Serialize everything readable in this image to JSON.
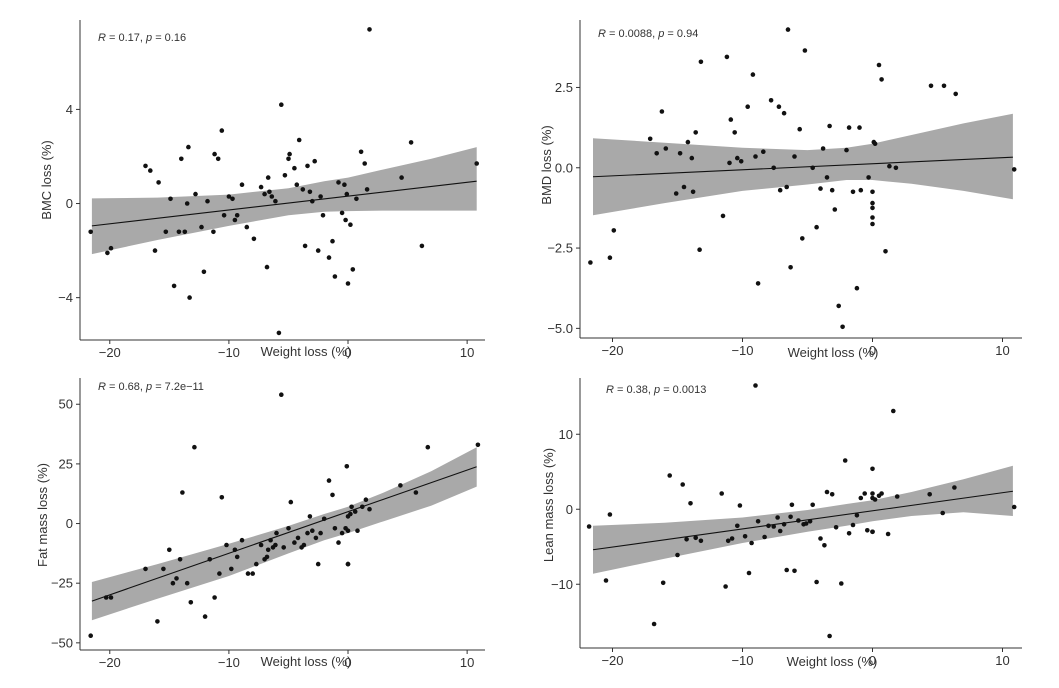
{
  "chart_data": [
    {
      "type": "scatter",
      "title": "",
      "xlabel": "Weight loss (%)",
      "ylabel": "BMC loss (%)",
      "annotation": {
        "r_label": "R",
        "r_value": " = 0.17, ",
        "p_label": "p",
        "p_value": " = 0.16"
      },
      "xlim": [
        -22.5,
        11.5
      ],
      "ylim": [
        -5.8,
        7.8
      ],
      "x_ticks": [
        -20,
        -10,
        0,
        10
      ],
      "x_tick_labels": [
        "−20",
        "−10",
        "0",
        "10"
      ],
      "y_ticks": [
        -4,
        0,
        4
      ],
      "y_tick_labels": [
        "−4",
        "0",
        "4"
      ],
      "grid": false,
      "fit": {
        "x": [
          -21.5,
          10.8
        ],
        "y": [
          -0.95,
          0.95
        ]
      },
      "ci": {
        "x": [
          -21.5,
          -16,
          -10,
          -5,
          -2,
          0,
          3,
          7,
          10.8
        ],
        "upper": [
          0.22,
          0.25,
          0.38,
          0.65,
          0.95,
          1.1,
          1.45,
          1.9,
          2.4
        ],
        "lower": [
          -2.15,
          -1.55,
          -0.95,
          -0.5,
          -0.35,
          -0.32,
          -0.3,
          -0.3,
          -0.3
        ]
      },
      "x": [
        -21.6,
        -20.2,
        -19.9,
        -17.0,
        -16.6,
        -16.2,
        -15.9,
        -15.3,
        -14.9,
        -14.6,
        -14.2,
        -14.0,
        -13.7,
        -13.5,
        -13.4,
        -13.3,
        -12.8,
        -12.3,
        -12.1,
        -11.8,
        -11.3,
        -11.2,
        -10.9,
        -10.6,
        -10.4,
        -10.0,
        -9.7,
        -9.5,
        -9.3,
        -8.9,
        -8.5,
        -7.9,
        -7.3,
        -7.0,
        -6.8,
        -6.7,
        -6.6,
        -6.4,
        -6.1,
        -5.8,
        -5.6,
        -5.3,
        -5.0,
        -4.9,
        -4.5,
        -4.3,
        -4.1,
        -3.8,
        -3.6,
        -3.4,
        -3.2,
        -3.0,
        -2.8,
        -2.5,
        -2.3,
        -2.1,
        -1.6,
        -1.3,
        -1.1,
        -0.8,
        -0.5,
        -0.3,
        -0.2,
        -0.1,
        0.0,
        0.2,
        0.4,
        0.7,
        1.1,
        1.4,
        1.6,
        1.8,
        4.5,
        5.3,
        6.2,
        10.8
      ],
      "y": [
        -1.2,
        -2.1,
        -1.9,
        1.6,
        1.4,
        -2.0,
        0.9,
        -1.2,
        0.2,
        -3.5,
        -1.2,
        1.9,
        -1.2,
        0.0,
        2.4,
        -4.0,
        0.4,
        -1.0,
        -2.9,
        0.1,
        -1.2,
        2.1,
        1.9,
        3.1,
        -0.5,
        0.3,
        0.2,
        -0.7,
        -0.5,
        0.8,
        -1.0,
        -1.5,
        0.7,
        0.4,
        -2.7,
        1.1,
        0.5,
        0.3,
        0.1,
        -5.5,
        4.2,
        1.2,
        1.9,
        2.1,
        1.5,
        0.8,
        2.7,
        0.6,
        -1.8,
        1.6,
        0.5,
        0.1,
        1.8,
        -2.0,
        0.3,
        -0.5,
        -2.3,
        -1.6,
        -3.1,
        0.9,
        -0.4,
        0.8,
        -0.7,
        0.4,
        -3.4,
        -0.9,
        -2.8,
        0.2,
        2.2,
        1.7,
        0.6,
        7.4,
        1.1,
        2.6,
        -1.8,
        1.7
      ]
    },
    {
      "type": "scatter",
      "title": "",
      "xlabel": "Weight loss (%)",
      "ylabel": "BMD loss (%)",
      "annotation": {
        "r_label": "R",
        "r_value": " = 0.0088, ",
        "p_label": "p",
        "p_value": " = 0.94"
      },
      "xlim": [
        -22.5,
        11.5
      ],
      "ylim": [
        -5.3,
        4.6
      ],
      "x_ticks": [
        -20,
        -10,
        0,
        10
      ],
      "x_tick_labels": [
        "−20",
        "−10",
        "0",
        "10"
      ],
      "y_ticks": [
        -5.0,
        -2.5,
        0.0,
        2.5
      ],
      "y_tick_labels": [
        "−5.0",
        "−2.5",
        "0.0",
        "2.5"
      ],
      "grid": false,
      "fit": {
        "x": [
          -21.5,
          10.8
        ],
        "y": [
          -0.28,
          0.33
        ]
      },
      "ci": {
        "x": [
          -21.5,
          -16,
          -10,
          -5,
          -2,
          0,
          3,
          7,
          10.8
        ],
        "upper": [
          0.92,
          0.78,
          0.62,
          0.55,
          0.62,
          0.75,
          1.02,
          1.38,
          1.68
        ],
        "lower": [
          -1.48,
          -1.1,
          -0.72,
          -0.52,
          -0.38,
          -0.38,
          -0.5,
          -0.72,
          -0.98
        ]
      },
      "x": [
        -21.7,
        -20.2,
        -19.9,
        -17.1,
        -16.6,
        -16.2,
        -15.9,
        -15.1,
        -14.8,
        -14.5,
        -14.2,
        -13.9,
        -13.8,
        -13.6,
        -13.3,
        -13.2,
        -11.5,
        -11.2,
        -11.0,
        -10.9,
        -10.6,
        -10.4,
        -10.1,
        -9.6,
        -9.2,
        -9.0,
        -8.8,
        -8.4,
        -7.8,
        -7.6,
        -7.2,
        -7.1,
        -6.8,
        -6.6,
        -6.5,
        -6.3,
        -6.0,
        -5.6,
        -5.4,
        -5.2,
        -4.6,
        -4.3,
        -4.0,
        -3.8,
        -3.5,
        -3.3,
        -3.1,
        -2.9,
        -2.6,
        -2.3,
        -2.0,
        -1.8,
        -1.5,
        -1.2,
        -1.0,
        -0.9,
        -0.3,
        0.0,
        0.0,
        0.0,
        0.0,
        0.0,
        0.1,
        0.2,
        0.5,
        0.7,
        1.0,
        1.3,
        1.8,
        4.5,
        5.5,
        6.4,
        10.9
      ],
      "y": [
        -2.95,
        -2.8,
        -1.95,
        0.9,
        0.45,
        1.75,
        0.6,
        -0.8,
        0.45,
        -0.6,
        0.8,
        0.3,
        -0.75,
        1.1,
        -2.55,
        3.3,
        -1.5,
        3.45,
        0.15,
        1.5,
        1.1,
        0.3,
        0.2,
        1.9,
        2.9,
        0.35,
        -3.6,
        0.5,
        2.1,
        0.0,
        1.9,
        -0.7,
        1.7,
        -0.6,
        4.3,
        -3.1,
        0.35,
        1.2,
        -2.2,
        3.65,
        0.0,
        -1.85,
        -0.65,
        0.6,
        -0.3,
        1.3,
        -0.7,
        -1.3,
        -4.3,
        -4.95,
        0.55,
        1.25,
        -0.75,
        -3.75,
        1.25,
        -0.7,
        -0.3,
        -0.75,
        -1.25,
        -1.75,
        -1.55,
        -1.1,
        0.8,
        0.75,
        3.2,
        2.75,
        -2.6,
        0.05,
        0.0,
        2.55,
        2.55,
        2.3,
        -0.05
      ]
    },
    {
      "type": "scatter",
      "title": "",
      "xlabel": "Weight loss (%)",
      "ylabel": "Fat mass loss (%)",
      "annotation": {
        "r_label": "R",
        "r_value": " = 0.68, ",
        "p_label": "p",
        "p_value": " = 7.2e−11"
      },
      "xlim": [
        -22.5,
        11.5
      ],
      "ylim": [
        -53,
        61
      ],
      "x_ticks": [
        -20,
        -10,
        0,
        10
      ],
      "x_tick_labels": [
        "−20",
        "−10",
        "0",
        "10"
      ],
      "y_ticks": [
        -50,
        -25,
        0,
        25,
        50
      ],
      "y_tick_labels": [
        "−50",
        "−25",
        "0",
        "25",
        "50"
      ],
      "grid": false,
      "fit": {
        "x": [
          -21.5,
          10.8
        ],
        "y": [
          -32.5,
          23.8
        ]
      },
      "ci": {
        "x": [
          -21.5,
          -16,
          -10,
          -5,
          -2,
          0,
          3,
          7,
          10.8
        ],
        "upper": [
          -24.5,
          -17,
          -8.5,
          -1,
          4,
          7,
          13,
          22,
          32
        ],
        "lower": [
          -40.5,
          -31.5,
          -22,
          -12.5,
          -7,
          -4,
          1,
          7.5,
          15.5
        ]
      },
      "x": [
        -21.6,
        -20.3,
        -19.9,
        -17.0,
        -16.0,
        -15.5,
        -15.0,
        -14.7,
        -14.4,
        -14.1,
        -13.9,
        -13.5,
        -13.2,
        -12.9,
        -12.0,
        -11.6,
        -11.2,
        -10.8,
        -10.6,
        -10.2,
        -9.8,
        -9.5,
        -9.3,
        -8.9,
        -8.4,
        -8.0,
        -7.7,
        -7.3,
        -7.0,
        -6.8,
        -6.7,
        -6.5,
        -6.3,
        -6.1,
        -6.0,
        -5.6,
        -5.4,
        -5.0,
        -4.8,
        -4.5,
        -4.2,
        -3.9,
        -3.7,
        -3.4,
        -3.2,
        -3.0,
        -2.7,
        -2.5,
        -2.3,
        -2.0,
        -1.6,
        -1.3,
        -1.1,
        -0.8,
        -0.5,
        -0.2,
        -0.1,
        0.0,
        0.0,
        0.0,
        0.0,
        0.2,
        0.3,
        0.6,
        0.8,
        1.2,
        1.5,
        1.8,
        4.4,
        5.7,
        6.7,
        10.9
      ],
      "y": [
        -47,
        -31,
        -31,
        -19,
        -41,
        -19,
        -11,
        -25,
        -23,
        -15,
        13,
        -25,
        -33,
        32,
        -39,
        -15,
        -31,
        -21,
        11,
        -9,
        -19,
        -11,
        -14,
        -7,
        -21,
        -21,
        -17,
        -9,
        -15,
        -14,
        -11,
        -7,
        -10,
        -9,
        -4,
        54,
        -10,
        -2,
        9,
        -8,
        -6,
        -10,
        -9,
        -4,
        3,
        -3,
        -6,
        -17,
        -4,
        2,
        18,
        12,
        -2,
        -8,
        -4,
        -2,
        24,
        -17,
        -17,
        -3,
        3,
        4,
        7,
        5,
        -3,
        7,
        10,
        6,
        16,
        13,
        32,
        33
      ]
    },
    {
      "type": "scatter",
      "title": "",
      "xlabel": "Weight loss (%)",
      "ylabel": "Lean mass loss (%)",
      "annotation": {
        "r_label": "R",
        "r_value": " = 0.38, ",
        "p_label": "p",
        "p_value": " = 0.0013"
      },
      "xlim": [
        -22.5,
        11.5
      ],
      "ylim": [
        -18.5,
        17.5
      ],
      "x_ticks": [
        -20,
        -10,
        0,
        10
      ],
      "x_tick_labels": [
        "−20",
        "−10",
        "0",
        "10"
      ],
      "y_ticks": [
        -10,
        0,
        10
      ],
      "y_tick_labels": [
        "−10",
        "0",
        "10"
      ],
      "grid": false,
      "fit": {
        "x": [
          -21.5,
          10.8
        ],
        "y": [
          -5.4,
          2.4
        ]
      },
      "ci": {
        "x": [
          -21.5,
          -16,
          -10,
          -5,
          -2,
          0,
          3,
          7,
          10.8
        ],
        "upper": [
          -2.2,
          -1.8,
          -1.1,
          -0.1,
          0.7,
          1.2,
          2.3,
          4.0,
          5.8
        ],
        "lower": [
          -8.6,
          -6.6,
          -4.5,
          -3.0,
          -2.2,
          -1.6,
          -0.9,
          -0.4,
          -0.9
        ]
      },
      "x": [
        -21.8,
        -20.5,
        -20.2,
        -16.8,
        -16.1,
        -15.6,
        -15.0,
        -14.6,
        -14.3,
        -14.0,
        -13.6,
        -13.2,
        -11.6,
        -11.3,
        -11.1,
        -10.8,
        -10.4,
        -10.2,
        -9.8,
        -9.5,
        -9.3,
        -9.0,
        -8.8,
        -8.3,
        -8.0,
        -7.6,
        -7.3,
        -7.1,
        -6.8,
        -6.6,
        -6.3,
        -6.2,
        -6.0,
        -5.7,
        -5.3,
        -5.1,
        -4.8,
        -4.6,
        -4.3,
        -4.0,
        -3.7,
        -3.5,
        -3.3,
        -3.1,
        -2.8,
        -2.4,
        -2.1,
        -1.8,
        -1.5,
        -1.2,
        -0.9,
        -0.6,
        -0.4,
        0.0,
        0.0,
        0.0,
        0.0,
        0.0,
        0.2,
        0.5,
        0.7,
        1.2,
        1.6,
        1.9,
        4.4,
        5.4,
        6.3,
        10.9
      ],
      "y": [
        -2.3,
        -9.5,
        -0.7,
        -15.3,
        -9.8,
        4.5,
        -6.1,
        3.3,
        -4.0,
        0.8,
        -3.8,
        -4.2,
        2.1,
        -10.3,
        -4.2,
        -3.9,
        -2.2,
        0.5,
        -3.6,
        -8.5,
        -4.5,
        16.5,
        -1.6,
        -3.7,
        -2.2,
        -2.3,
        -1.1,
        -2.9,
        -2.0,
        -8.1,
        -1.0,
        0.6,
        -8.2,
        -1.5,
        -2.0,
        -1.9,
        -1.6,
        0.6,
        -9.7,
        -3.9,
        -4.8,
        2.3,
        -16.9,
        2.0,
        -2.4,
        -9.9,
        6.5,
        -3.2,
        -2.1,
        -0.8,
        1.5,
        2.1,
        -2.8,
        5.4,
        2.1,
        1.5,
        -3.0,
        -3.0,
        1.3,
        1.8,
        2.1,
        -3.3,
        13.1,
        1.7,
        2.0,
        -0.5,
        2.9,
        0.3
      ]
    }
  ]
}
